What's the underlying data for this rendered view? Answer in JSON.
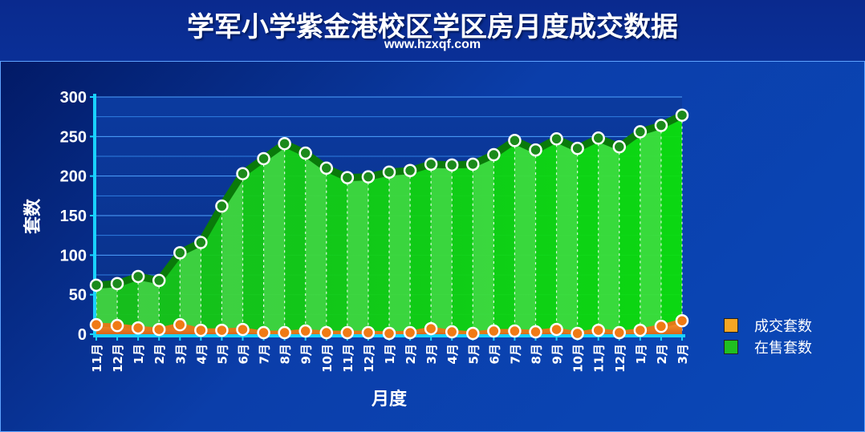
{
  "chart_data": {
    "type": "area",
    "title": "学军小学紫金港校区学区房月度成交数据",
    "subtitle": "www.hzxqf.com",
    "xlabel": "月度",
    "ylabel": "套数",
    "ylim": [
      0,
      300
    ],
    "yticks": [
      "300",
      "250",
      "200",
      "150",
      "100",
      "50",
      "0"
    ],
    "categories": [
      "11月",
      "12月",
      "1月",
      "2月",
      "3月",
      "4月",
      "5月",
      "6月",
      "7月",
      "8月",
      "9月",
      "10月",
      "11月",
      "12月",
      "1月",
      "2月",
      "3月",
      "4月",
      "5月",
      "6月",
      "7月",
      "8月",
      "9月",
      "10月",
      "11月",
      "12月",
      "1月",
      "2月",
      "3月"
    ],
    "series": [
      {
        "name": "成交套数",
        "color": "#f28a1e",
        "values": [
          12,
          11,
          8,
          6,
          12,
          5,
          5,
          6,
          2,
          2,
          4,
          2,
          2,
          2,
          1,
          2,
          7,
          3,
          1,
          4,
          4,
          3,
          6,
          1,
          5,
          2,
          5,
          10,
          17
        ]
      },
      {
        "name": "在售套数",
        "color": "#1ed41e",
        "values": [
          62,
          64,
          73,
          68,
          103,
          116,
          162,
          203,
          222,
          241,
          229,
          210,
          198,
          199,
          205,
          207,
          215,
          214,
          215,
          227,
          245,
          233,
          247,
          235,
          248,
          237,
          256,
          264,
          277
        ]
      }
    ],
    "grid": true,
    "legend_position": "right"
  }
}
